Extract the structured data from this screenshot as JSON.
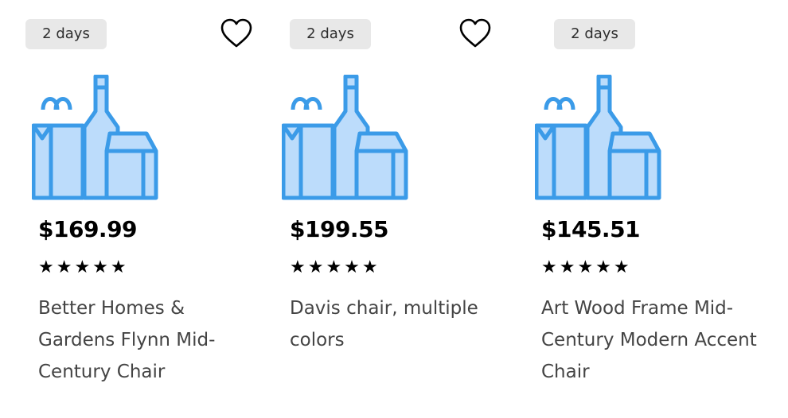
{
  "products": [
    {
      "delivery_badge": "2 days",
      "price": "$169.99",
      "stars": "★★★★★",
      "title": "Better Homes & Gardens Flynn Mid-Century Chair",
      "favorite_icon": "heart-outline-icon",
      "image_icon": "grocery-bag-bottle-carton-icon"
    },
    {
      "delivery_badge": "2 days",
      "price": "$199.55",
      "stars": "★★★★★",
      "title": "Davis chair, multiple colors",
      "favorite_icon": "heart-outline-icon",
      "image_icon": "grocery-bag-bottle-carton-icon"
    },
    {
      "delivery_badge": "2 days",
      "price": "$145.51",
      "stars": "★★★★★",
      "title": "Art Wood Frame Mid-Century Modern Accent Chair",
      "image_icon": "grocery-bag-bottle-carton-icon"
    }
  ],
  "colors": {
    "icon_stroke": "#3b9be8",
    "icon_fill": "#bcdcfb",
    "badge_bg": "#e8e8e8"
  }
}
